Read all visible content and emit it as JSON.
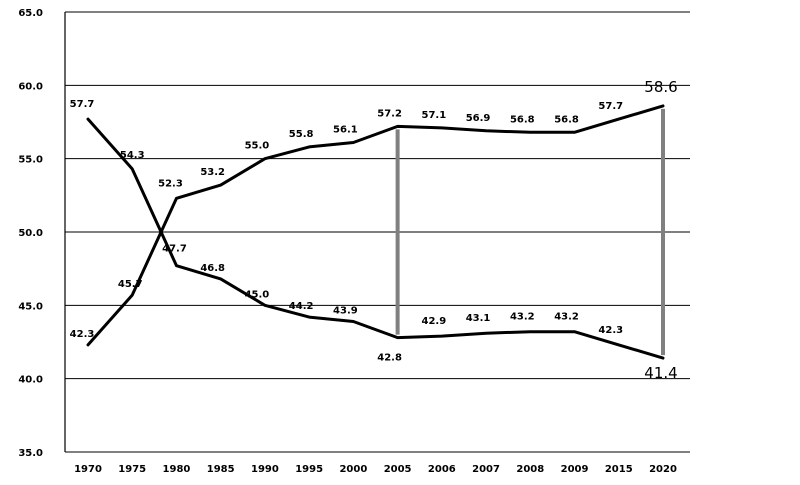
{
  "chart_data": {
    "type": "line",
    "categories": [
      "1970",
      "1975",
      "1980",
      "1985",
      "1990",
      "1995",
      "2000",
      "2005",
      "2006",
      "2007",
      "2008",
      "2009",
      "2015",
      "2020"
    ],
    "series": [
      {
        "values": [
          57.7,
          54.3,
          47.7,
          46.8,
          45.0,
          44.2,
          43.9,
          42.8,
          42.9,
          43.1,
          43.2,
          43.2,
          42.3,
          41.4
        ]
      },
      {
        "values": [
          42.3,
          45.7,
          52.3,
          53.2,
          55.0,
          55.8,
          56.1,
          57.2,
          57.1,
          56.9,
          56.8,
          56.8,
          57.7,
          58.6
        ]
      }
    ],
    "ylim": [
      35.0,
      65.0
    ],
    "yticks": [
      "35.0",
      "40.0",
      "45.0",
      "50.0",
      "55.0",
      "60.0",
      "65.0"
    ],
    "grid": true,
    "highlight_categories": [
      "2005",
      "2020"
    ],
    "line_color": "#000000",
    "marker_color": "#808080"
  }
}
